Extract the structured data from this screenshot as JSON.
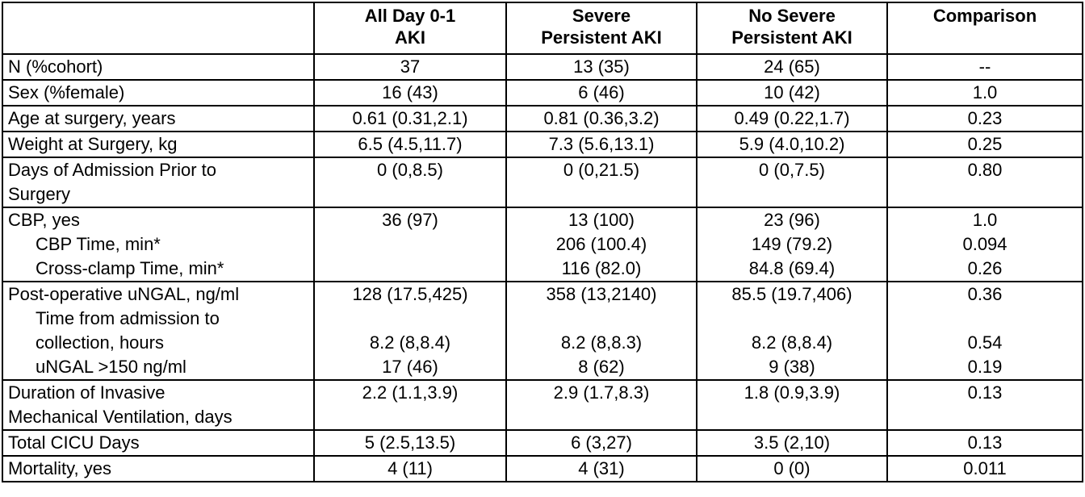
{
  "header": {
    "blank": "",
    "all_aki": [
      "All Day 0-1",
      "AKI"
    ],
    "severe": [
      "Severe",
      "Persistent AKI"
    ],
    "no_severe": [
      "No Severe",
      "Persistent AKI"
    ],
    "comparison": "Comparison"
  },
  "rows": [
    {
      "label": [
        "N (%cohort)"
      ],
      "all": [
        "37"
      ],
      "severe": [
        "13 (35)"
      ],
      "nosevere": [
        "24 (65)"
      ],
      "comparison": [
        "--"
      ]
    },
    {
      "label": [
        "Sex (%female)"
      ],
      "all": [
        "16 (43)"
      ],
      "severe": [
        "6 (46)"
      ],
      "nosevere": [
        "10 (42)"
      ],
      "comparison": [
        "1.0"
      ]
    },
    {
      "label": [
        "Age at surgery, years"
      ],
      "all": [
        "0.61 (0.31,2.1)"
      ],
      "severe": [
        "0.81 (0.36,3.2)"
      ],
      "nosevere": [
        "0.49 (0.22,1.7)"
      ],
      "comparison": [
        "0.23"
      ]
    },
    {
      "label": [
        "Weight at Surgery, kg"
      ],
      "all": [
        "6.5 (4.5,11.7)"
      ],
      "severe": [
        "7.3 (5.6,13.1)"
      ],
      "nosevere": [
        "5.9 (4.0,10.2)"
      ],
      "comparison": [
        "0.25"
      ]
    },
    {
      "label": [
        "Days of Admission Prior to",
        "Surgery"
      ],
      "all": [
        "0 (0,8.5)",
        ""
      ],
      "severe": [
        "0 (0,21.5)",
        ""
      ],
      "nosevere": [
        "0 (0,7.5)",
        ""
      ],
      "comparison": [
        "0.80",
        ""
      ]
    },
    {
      "label": [
        "CBP, yes",
        "CBP Time, min*",
        "Cross-clamp Time, min*"
      ],
      "all": [
        "36 (97)",
        "",
        ""
      ],
      "severe": [
        "13 (100)",
        "206 (100.4)",
        "116 (82.0)"
      ],
      "nosevere": [
        "23 (96)",
        "149 (79.2)",
        "84.8 (69.4)"
      ],
      "comparison": [
        "1.0",
        "0.094",
        "0.26"
      ]
    },
    {
      "label": [
        "Post-operative uNGAL, ng/ml",
        "Time from admission to",
        "collection, hours",
        "uNGAL >150 ng/ml"
      ],
      "all": [
        "128 (17.5,425)",
        "",
        "8.2 (8,8.4)",
        "17 (46)"
      ],
      "severe": [
        "358 (13,2140)",
        "",
        "8.2 (8,8.3)",
        "8 (62)"
      ],
      "nosevere": [
        "85.5 (19.7,406)",
        "",
        "8.2 (8,8.4)",
        "9 (38)"
      ],
      "comparison": [
        "0.36",
        "",
        "0.54",
        "0.19"
      ]
    },
    {
      "label": [
        "Duration of Invasive",
        "Mechanical Ventilation, days"
      ],
      "all": [
        "2.2 (1.1,3.9)",
        ""
      ],
      "severe": [
        "2.9 (1.7,8.3)",
        ""
      ],
      "nosevere": [
        "1.8 (0.9,3.9)",
        ""
      ],
      "comparison": [
        "0.13",
        ""
      ]
    },
    {
      "label": [
        "Total CICU Days"
      ],
      "all": [
        "5 (2.5,13.5)"
      ],
      "severe": [
        "6 (3,27)"
      ],
      "nosevere": [
        "3.5 (2,10)"
      ],
      "comparison": [
        "0.13"
      ]
    },
    {
      "label": [
        "Mortality, yes"
      ],
      "all": [
        "4 (11)"
      ],
      "severe": [
        "4 (31)"
      ],
      "nosevere": [
        "0 (0)"
      ],
      "comparison": [
        "0.011"
      ]
    }
  ]
}
